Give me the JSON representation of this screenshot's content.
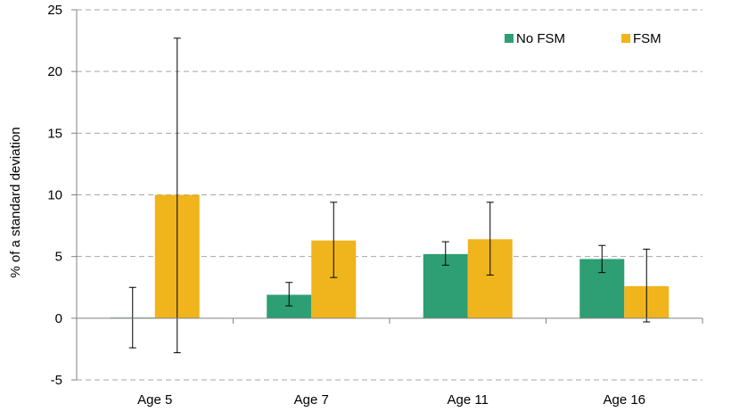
{
  "chart_data": {
    "type": "bar",
    "title": "",
    "xlabel": "",
    "ylabel": "% of a standard deviation",
    "ylim": [
      -5,
      25
    ],
    "yticks": [
      -5,
      0,
      5,
      10,
      15,
      20,
      25
    ],
    "grid": true,
    "legend_position": "top-right",
    "categories": [
      "Age 5",
      "Age 7",
      "Age 11",
      "Age 16"
    ],
    "series": [
      {
        "name": "No FSM",
        "color": "#2e9e74",
        "values": [
          0.05,
          1.9,
          5.2,
          4.8
        ],
        "error_low": [
          -2.4,
          1.0,
          4.3,
          3.7
        ],
        "error_high": [
          2.5,
          2.9,
          6.2,
          5.9
        ]
      },
      {
        "name": "FSM",
        "color": "#f0b41c",
        "values": [
          10.0,
          6.3,
          6.4,
          2.6
        ],
        "error_low": [
          -2.8,
          3.3,
          3.5,
          -0.3
        ],
        "error_high": [
          22.7,
          9.4,
          9.4,
          5.6
        ]
      }
    ]
  }
}
